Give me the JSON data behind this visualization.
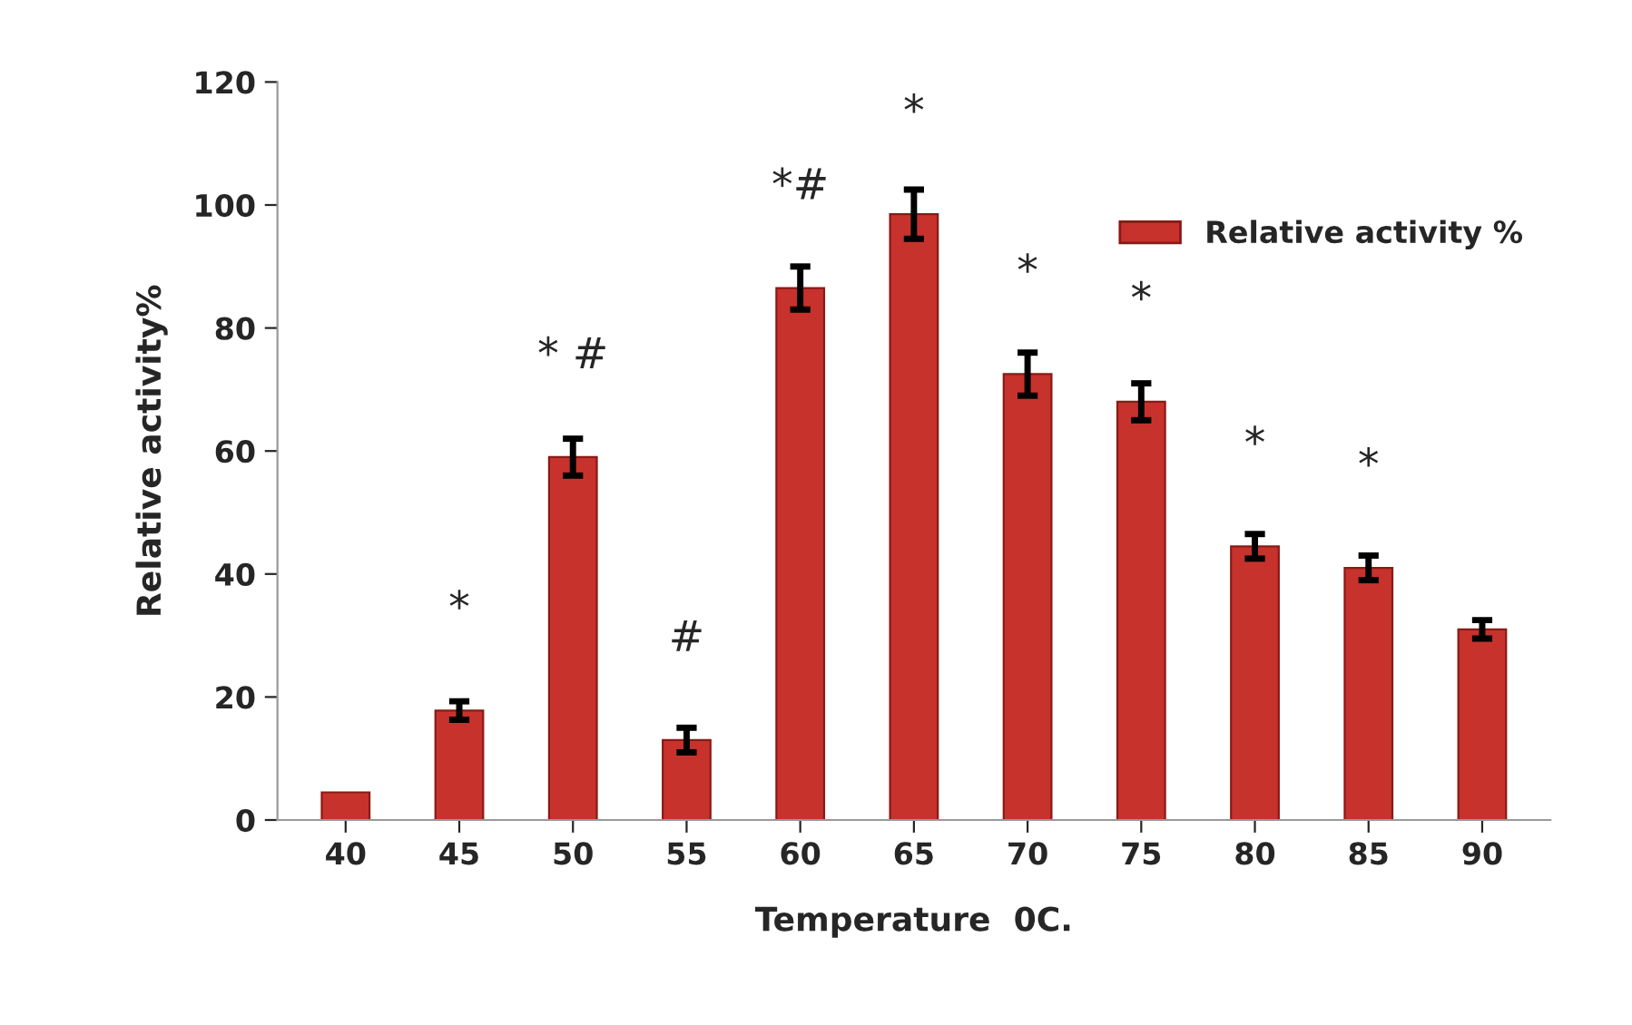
{
  "chart_data": {
    "type": "bar",
    "xlabel": "Temperature  0C.",
    "ylabel": "Relative activity%",
    "categories": [
      "40",
      "45",
      "50",
      "55",
      "60",
      "65",
      "70",
      "75",
      "80",
      "85",
      "90"
    ],
    "series": [
      {
        "name": "Relative activity %",
        "color": "#c8322c",
        "values": [
          4.5,
          17.8,
          59,
          13,
          86.5,
          98.5,
          72.5,
          68,
          44.5,
          41,
          31
        ],
        "errors": [
          null,
          1.5,
          3,
          2,
          3.5,
          4,
          3.5,
          3,
          2,
          2,
          1.5
        ]
      }
    ],
    "ylim": [
      0,
      120
    ],
    "yticks": [
      0,
      20,
      40,
      60,
      80,
      100,
      120
    ],
    "grid": false,
    "legend": "top right",
    "annotations": [
      {
        "text": "*",
        "x": "45",
        "y": 17.8
      },
      {
        "text": "* #",
        "x": "50",
        "y": 59
      },
      {
        "text": "#",
        "x": "55",
        "y": 13
      },
      {
        "text": "*#",
        "x": "60",
        "y": 86.5
      },
      {
        "text": "*",
        "x": "65",
        "y": 98.5
      },
      {
        "text": "*",
        "x": "70",
        "y": 72.5
      },
      {
        "text": "*",
        "x": "75",
        "y": 68
      },
      {
        "text": "*",
        "x": "80",
        "y": 44.5
      },
      {
        "text": "*",
        "x": "85",
        "y": 41
      }
    ]
  }
}
